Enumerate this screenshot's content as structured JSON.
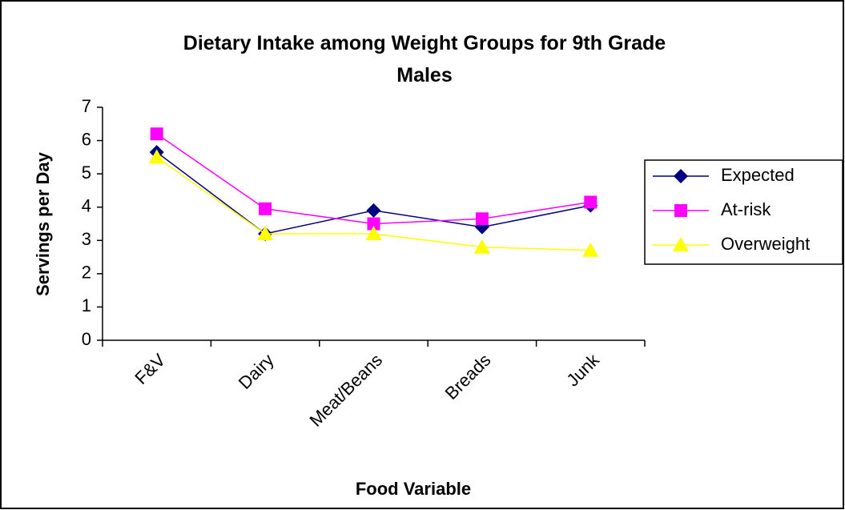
{
  "chart_data": {
    "type": "line",
    "title": "Dietary Intake among Weight Groups for 9th Grade Males",
    "x_label": "Food Variable",
    "y_label": "Servings per Day",
    "categories": [
      "F&V",
      "Dairy",
      "Meat/Beans",
      "Breads",
      "Junk"
    ],
    "series": [
      {
        "name": "Expected",
        "color": "#000080",
        "marker": "diamond",
        "values": [
          5.65,
          3.2,
          3.9,
          3.4,
          4.05
        ]
      },
      {
        "name": "At-risk",
        "color": "#ff00ff",
        "marker": "square",
        "values": [
          6.2,
          3.95,
          3.5,
          3.65,
          4.15
        ]
      },
      {
        "name": "Overweight",
        "color": "#ffff00",
        "marker": "triangle",
        "values": [
          5.5,
          3.2,
          3.2,
          2.8,
          2.7
        ]
      }
    ],
    "ylim": [
      0,
      7
    ],
    "yticks": [
      0,
      1,
      2,
      3,
      4,
      5,
      6,
      7
    ],
    "grid": false,
    "legend": "right"
  }
}
